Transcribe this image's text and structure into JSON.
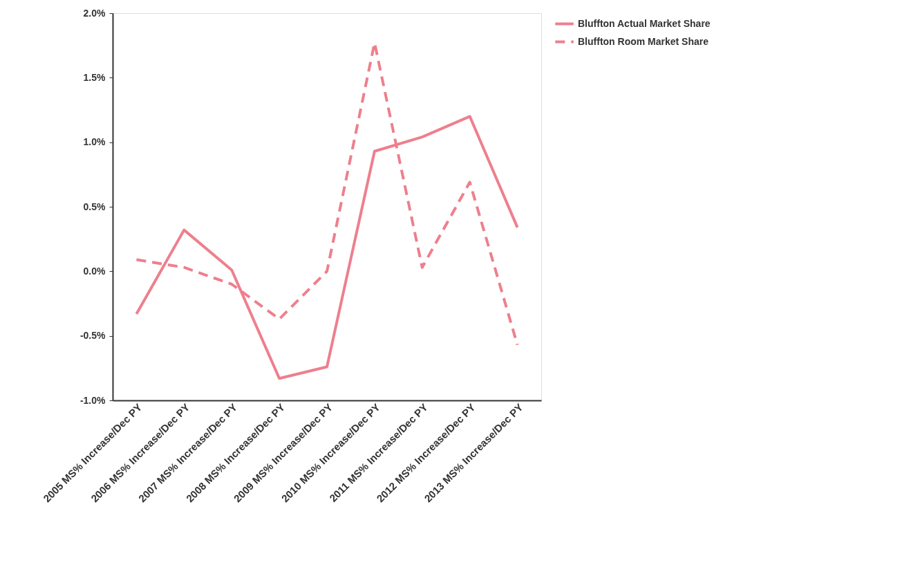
{
  "chart_data": {
    "type": "line",
    "categories": [
      "2005 MS% Increase/Dec PY",
      "2006 MS% Increase/Dec PY",
      "2007 MS% Increase/Dec PY",
      "2008 MS% Increase/Dec PY",
      "2009 MS% Increase/Dec PY",
      "2010 MS% Increase/Dec PY",
      "2011 MS% Increase/Dec PY",
      "2012 MS% Increase/Dec PY",
      "2013 MS% Increase/Dec PY"
    ],
    "series": [
      {
        "name": "Bluffton Actual Market Share",
        "color": "#ee7f8d",
        "line_style": "solid",
        "values": [
          -0.33,
          0.32,
          0.01,
          -0.83,
          -0.74,
          0.93,
          1.04,
          1.2,
          0.34
        ]
      },
      {
        "name": "Bluffton Room Market Share",
        "color": "#ee7f8d",
        "line_style": "dashed",
        "values": [
          0.09,
          0.03,
          -0.1,
          -0.37,
          0.0,
          1.77,
          0.03,
          0.69,
          -0.57
        ]
      }
    ],
    "ylim": [
      -1.0,
      2.0
    ],
    "yticks": [
      {
        "value": -1.0,
        "label": "-1.0%"
      },
      {
        "value": -0.5,
        "label": "-0.5%"
      },
      {
        "value": 0.0,
        "label": "0.0%"
      },
      {
        "value": 0.5,
        "label": "0.5%"
      },
      {
        "value": 1.0,
        "label": "1.0%"
      },
      {
        "value": 1.5,
        "label": "1.5%"
      },
      {
        "value": 2.0,
        "label": "2.0%"
      }
    ],
    "grid": false,
    "legend": "right",
    "marker": "none"
  }
}
